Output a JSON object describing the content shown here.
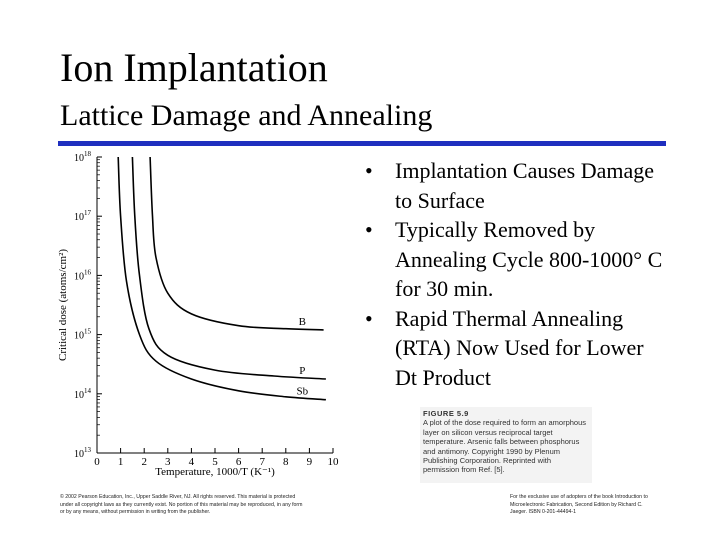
{
  "slide": {
    "title": "Ion Implantation",
    "subtitle": "Lattice Damage and Annealing"
  },
  "bullets": [
    {
      "text": "Implantation Causes Damage to Surface"
    },
    {
      "text": "Typically Removed by Annealing Cycle 800-1000° C for 30 min."
    },
    {
      "text": "Rapid Thermal Annealing (RTA) Now Used for Lower Dt Product"
    }
  ],
  "figure": {
    "caption_label": "FIGURE 5.9",
    "caption_text": "A plot of the dose required to form an amorphous layer on silicon versus reciprocal target temperature. Arsenic falls between phosphorus and antimony. Copyright 1990 by Plenum Publishing Corporation. Reprinted with permission from Ref. [5]."
  },
  "footer": {
    "copyright_left": "© 2002 Pearson Education, Inc., Upper Saddle River, NJ. All rights reserved. This material is protected under all copyright laws as they currently exist. No portion of this material may be reproduced, in any form or by any means, without permission in writing from the publisher.",
    "copyright_right": "For the exclusive use of adopters of the book Introduction to Microelectronic Fabrication, Second Edition by Richard C. Jaeger. ISBN 0-201-44494-1"
  },
  "chart_data": {
    "type": "line",
    "title": "",
    "xlabel": "Temperature, 1000/T (K⁻¹)",
    "ylabel": "Critical dose (atoms/cm²)",
    "xlim": [
      0,
      10
    ],
    "ylim_log10": [
      13,
      18
    ],
    "x_ticks": [
      "0",
      "1",
      "2",
      "3",
      "4",
      "5",
      "6",
      "7",
      "8",
      "9",
      "10"
    ],
    "y_ticks": [
      {
        "base": "10",
        "exp": "13"
      },
      {
        "base": "10",
        "exp": "14"
      },
      {
        "base": "10",
        "exp": "15"
      },
      {
        "base": "10",
        "exp": "16"
      },
      {
        "base": "10",
        "exp": "17"
      },
      {
        "base": "10",
        "exp": "18"
      }
    ],
    "series": [
      {
        "name": "B",
        "points": [
          [
            2.25,
            18.0
          ],
          [
            2.35,
            17.0
          ],
          [
            2.5,
            16.3
          ],
          [
            3.0,
            15.7
          ],
          [
            4.0,
            15.35
          ],
          [
            6.0,
            15.15
          ],
          [
            8.0,
            15.1
          ],
          [
            9.6,
            15.08
          ]
        ]
      },
      {
        "name": "P",
        "points": [
          [
            1.5,
            18.0
          ],
          [
            1.6,
            17.0
          ],
          [
            1.8,
            16.0
          ],
          [
            2.2,
            15.1
          ],
          [
            3.0,
            14.65
          ],
          [
            5.0,
            14.4
          ],
          [
            7.5,
            14.3
          ],
          [
            9.7,
            14.25
          ]
        ]
      },
      {
        "name": "Sb",
        "points": [
          [
            0.9,
            18.0
          ],
          [
            1.0,
            17.0
          ],
          [
            1.25,
            15.9
          ],
          [
            1.8,
            15.0
          ],
          [
            2.5,
            14.55
          ],
          [
            4.0,
            14.25
          ],
          [
            6.0,
            14.05
          ],
          [
            8.0,
            13.95
          ],
          [
            9.7,
            13.9
          ]
        ]
      }
    ]
  }
}
